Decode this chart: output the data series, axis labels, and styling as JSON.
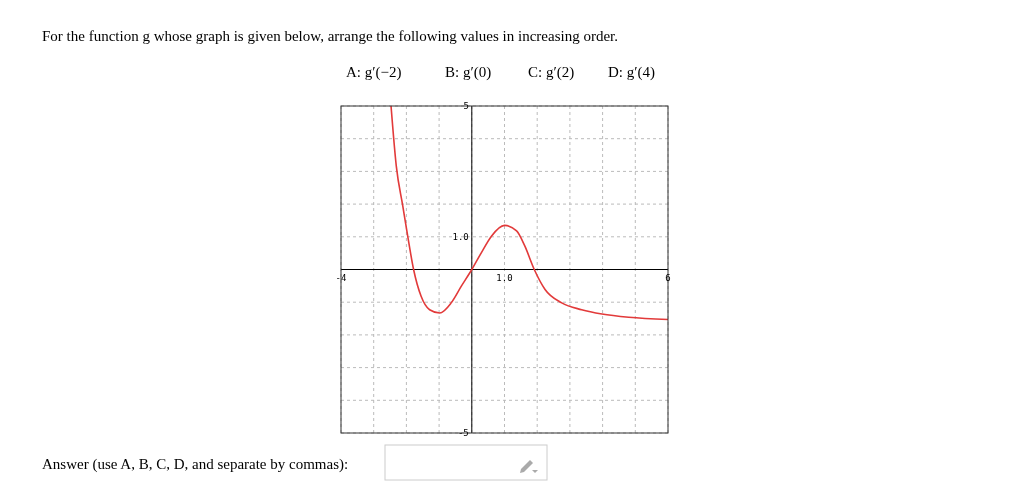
{
  "chart_data": {
    "type": "line",
    "title": "For the function g whose graph is given below, arrange the following values in increasing order.",
    "annotations": [
      "A: g′(−2)",
      "B: g′(0)",
      "C: g′(2)",
      "D: g′(4)",
      "Answer (use A, B, C, D, and separate by commas):"
    ],
    "x": [
      -2.47,
      -2.31,
      -2.11,
      -1.96,
      -1.78,
      -1.55,
      -1.29,
      -0.98,
      -0.63,
      -0.32,
      0,
      0.29,
      0.6,
      1.0,
      1.37,
      1.62,
      1.91,
      2.24,
      2.75,
      3.36,
      3.98,
      4.8,
      6
    ],
    "series": [
      {
        "color": "#e23a3a",
        "values": [
          5,
          3.17,
          1.94,
          1.02,
          0,
          -0.82,
          -1.23,
          -1.33,
          -1.02,
          -0.51,
          0,
          0.51,
          1.02,
          1.35,
          1.18,
          0.72,
          0,
          -0.61,
          -1.02,
          -1.23,
          -1.36,
          -1.46,
          -1.53
        ]
      }
    ],
    "xlim": [
      -4,
      6
    ],
    "ylim": [
      -5,
      5
    ],
    "xticks": [
      -4,
      {
        "value": -3,
        "label": null
      },
      {
        "value": -2,
        "label": null
      },
      {
        "value": -1,
        "label": null
      },
      {
        "value": 0,
        "label": null
      },
      {
        "value": 1,
        "label": "1.0"
      },
      {
        "value": 2,
        "label": null
      },
      {
        "value": 3,
        "label": null
      },
      {
        "value": 4,
        "label": null
      },
      {
        "value": 5,
        "label": null
      },
      6
    ],
    "yticks": [
      -5,
      {
        "value": -4,
        "label": null
      },
      {
        "value": -3,
        "label": null
      },
      {
        "value": -2,
        "label": null
      },
      {
        "value": -1,
        "label": null
      },
      {
        "value": 0,
        "label": null
      },
      {
        "value": 1,
        "label": "1.0"
      },
      {
        "value": 2,
        "label": null
      },
      {
        "value": 3,
        "label": null
      },
      {
        "value": 4,
        "label": null
      },
      5
    ],
    "grid": true,
    "marker": "none",
    "line_style": "solid"
  }
}
